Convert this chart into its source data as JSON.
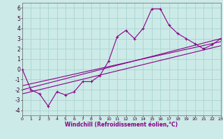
{
  "xlabel": "Windchill (Refroidissement éolien,°C)",
  "xlim": [
    0,
    23
  ],
  "ylim": [
    -4.5,
    6.5
  ],
  "yticks": [
    -4,
    -3,
    -2,
    -1,
    0,
    1,
    2,
    3,
    4,
    5,
    6
  ],
  "xticks": [
    0,
    1,
    2,
    3,
    4,
    5,
    6,
    7,
    8,
    9,
    10,
    11,
    12,
    13,
    14,
    15,
    16,
    17,
    18,
    19,
    20,
    21,
    22,
    23
  ],
  "bg_color": "#cceae7",
  "grid_color": "#aad4d0",
  "line_color": "#880088",
  "line1_x": [
    0,
    1,
    2,
    3,
    4,
    5,
    6,
    7,
    8,
    9,
    10,
    11,
    12,
    13,
    14,
    15,
    16,
    17,
    18,
    19,
    20,
    21,
    22,
    23
  ],
  "line1_y": [
    0.0,
    -2.0,
    -2.4,
    -3.6,
    -2.2,
    -2.5,
    -2.2,
    -1.2,
    -1.2,
    -0.6,
    0.8,
    3.2,
    3.8,
    3.0,
    4.0,
    5.9,
    5.9,
    4.3,
    3.5,
    3.0,
    2.5,
    2.0,
    2.4,
    3.0
  ],
  "line2_x": [
    0,
    23
  ],
  "line2_y": [
    -2.0,
    3.0
  ],
  "line3_x": [
    0,
    23
  ],
  "line3_y": [
    -1.6,
    2.7
  ],
  "line4_x": [
    0,
    23
  ],
  "line4_y": [
    -2.4,
    2.3
  ]
}
